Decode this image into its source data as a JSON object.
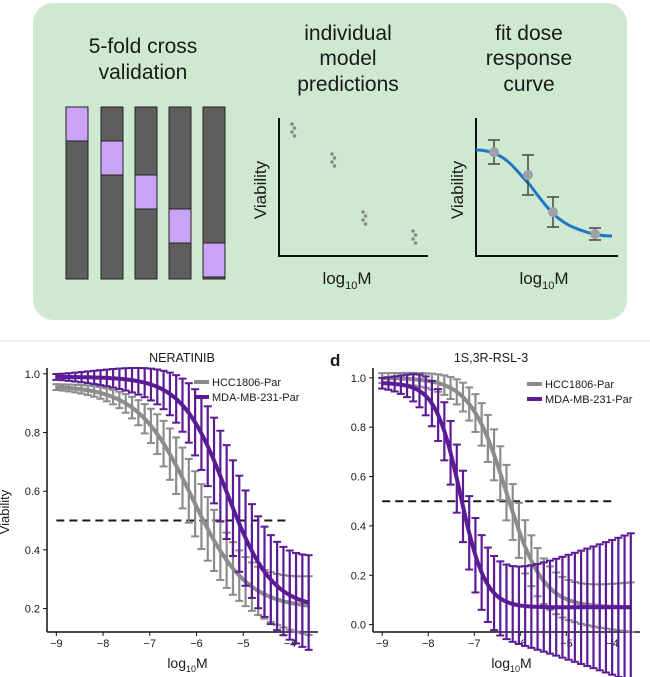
{
  "panel_top": {
    "background": "#cfe9d0",
    "cross_validation": {
      "title_line1": "5-fold cross",
      "title_line2": "validation",
      "fold_color": "#5e5e5e",
      "highlight_color": "#c9a3f5"
    },
    "predictions": {
      "title_line1": "individual",
      "title_line2": "model",
      "title_line3": "predictions",
      "ylabel": "Viability",
      "xlabel_base": "log",
      "xlabel_sub": "10",
      "xlabel_tail": "M"
    },
    "fit": {
      "title_line1": "fit dose",
      "title_line2": "response",
      "title_line3": "curve",
      "ylabel": "Viability",
      "xlabel_base": "log",
      "xlabel_sub": "10",
      "xlabel_tail": "M",
      "curve_color": "#1f77c8"
    }
  },
  "colors": {
    "HCC1806-Par": "#8c8c8c",
    "MDA-MB-231-Par": "#5b1a96",
    "threshold": "#1a1a1a"
  },
  "panel_d_letter": "d",
  "chart_data": [
    {
      "type": "line",
      "title": "NERATINIB",
      "xlabel_base": "log",
      "xlabel_sub": "10",
      "xlabel_tail": "M",
      "ylabel": "Viability",
      "xlim": [
        -9.2,
        -3.4
      ],
      "ylim": [
        0.12,
        1.02
      ],
      "xticks": [
        -9,
        -8,
        -7,
        -6,
        -5,
        -4
      ],
      "yticks": [
        0.2,
        0.4,
        0.6,
        0.8,
        1.0
      ],
      "ytick_labels": [
        "0.2",
        "0.4",
        "0.6",
        "0.8",
        "1.0"
      ],
      "threshold": {
        "y": 0.5,
        "x_from": -9,
        "x_to": -4
      },
      "legend": "top-right",
      "series": [
        {
          "name": "HCC1806-Par",
          "color": "#8c8c8c",
          "bottom": 0.2,
          "top": 0.96,
          "ic50": -6.1,
          "hill": 0.75,
          "x_start": -9,
          "x_end": -3.6,
          "err_start": 0.01,
          "err_end": 0.1
        },
        {
          "name": "MDA-MB-231-Par",
          "color": "#5b1a96",
          "bottom": 0.2,
          "top": 0.99,
          "ic50": -5.35,
          "hill": 0.9,
          "x_start": -9,
          "x_end": -3.6,
          "err_start": 0.01,
          "err_end": 0.16
        }
      ]
    },
    {
      "type": "line",
      "title": "1S,3R-RSL-3",
      "xlabel_base": "log",
      "xlabel_sub": "10",
      "xlabel_tail": "M",
      "ylabel": "",
      "xlim": [
        -9.2,
        -3.4
      ],
      "ylim": [
        -0.03,
        1.04
      ],
      "xticks": [
        -9,
        -8,
        -7,
        -6,
        -5,
        -4
      ],
      "yticks": [
        0.0,
        0.2,
        0.4,
        0.6,
        0.8,
        1.0
      ],
      "ytick_labels": [
        "0.0",
        "0.2",
        "0.4",
        "0.6",
        "0.8",
        "1.0"
      ],
      "threshold": {
        "y": 0.5,
        "x_from": -9,
        "x_to": -4
      },
      "legend": "top-right",
      "series": [
        {
          "name": "HCC1806-Par",
          "color": "#8c8c8c",
          "bottom": 0.07,
          "top": 1.0,
          "ic50": -6.3,
          "hill": 1.1,
          "x_start": -9,
          "x_end": -3.6,
          "err_start": 0.02,
          "err_end": 0.1
        },
        {
          "name": "MDA-MB-231-Par",
          "color": "#5b1a96",
          "bottom": 0.07,
          "top": 0.98,
          "ic50": -7.3,
          "hill": 1.6,
          "x_start": -9,
          "x_end": -3.6,
          "err_start": 0.02,
          "err_end": 0.3
        }
      ]
    }
  ]
}
